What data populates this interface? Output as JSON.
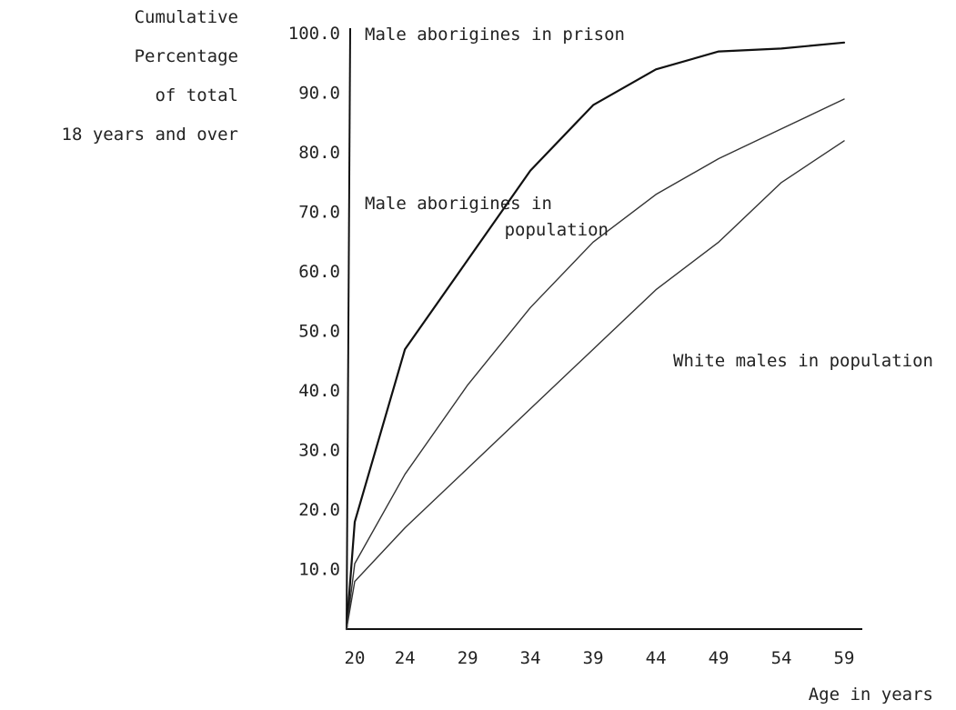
{
  "chart_data": {
    "type": "line",
    "title": "",
    "ylabel_lines": [
      "Cumulative",
      "Percentage",
      "of total",
      "18 years and over"
    ],
    "xlabel": "Age in years",
    "x_origin": 18,
    "xlim": [
      18,
      59
    ],
    "ylim": [
      0,
      100
    ],
    "x_ticks": [
      20,
      24,
      29,
      34,
      39,
      44,
      49,
      54,
      59
    ],
    "y_ticks": [
      {
        "value": 10,
        "label": "10.0"
      },
      {
        "value": 20,
        "label": "20.0"
      },
      {
        "value": 30,
        "label": "30.0"
      },
      {
        "value": 40,
        "label": "40.0"
      },
      {
        "value": 50,
        "label": "50.0"
      },
      {
        "value": 60,
        "label": "60.0"
      },
      {
        "value": 70,
        "label": "70.0"
      },
      {
        "value": 80,
        "label": "80.0"
      },
      {
        "value": 90,
        "label": "90.0"
      },
      {
        "value": 100,
        "label": "100.0"
      }
    ],
    "series": [
      {
        "name": "Male aborigines in prison",
        "label_lines": [
          "Male aborigines in prison"
        ],
        "color": "#111111",
        "stroke_width": 2.2,
        "points": [
          [
            18,
            0
          ],
          [
            20,
            18
          ],
          [
            24,
            47
          ],
          [
            29,
            62
          ],
          [
            34,
            77
          ],
          [
            39,
            88
          ],
          [
            44,
            94
          ],
          [
            49,
            97
          ],
          [
            54,
            97.5
          ],
          [
            59,
            98.5
          ]
        ]
      },
      {
        "name": "Male aborigines in population",
        "label_lines": [
          "Male aborigines in",
          "population"
        ],
        "color": "#333333",
        "stroke_width": 1.4,
        "points": [
          [
            18,
            0
          ],
          [
            20,
            11
          ],
          [
            24,
            26
          ],
          [
            29,
            41
          ],
          [
            34,
            54
          ],
          [
            39,
            65
          ],
          [
            44,
            73
          ],
          [
            49,
            79
          ],
          [
            54,
            84
          ],
          [
            59,
            89
          ]
        ]
      },
      {
        "name": "White males in population",
        "label_lines": [
          "White males in population"
        ],
        "color": "#333333",
        "stroke_width": 1.4,
        "points": [
          [
            18,
            0
          ],
          [
            20,
            8
          ],
          [
            24,
            17
          ],
          [
            29,
            27
          ],
          [
            34,
            37
          ],
          [
            39,
            47
          ],
          [
            44,
            57
          ],
          [
            49,
            65
          ],
          [
            54,
            75
          ],
          [
            59,
            82
          ]
        ]
      }
    ],
    "grid": false,
    "legend": "inline labels"
  }
}
